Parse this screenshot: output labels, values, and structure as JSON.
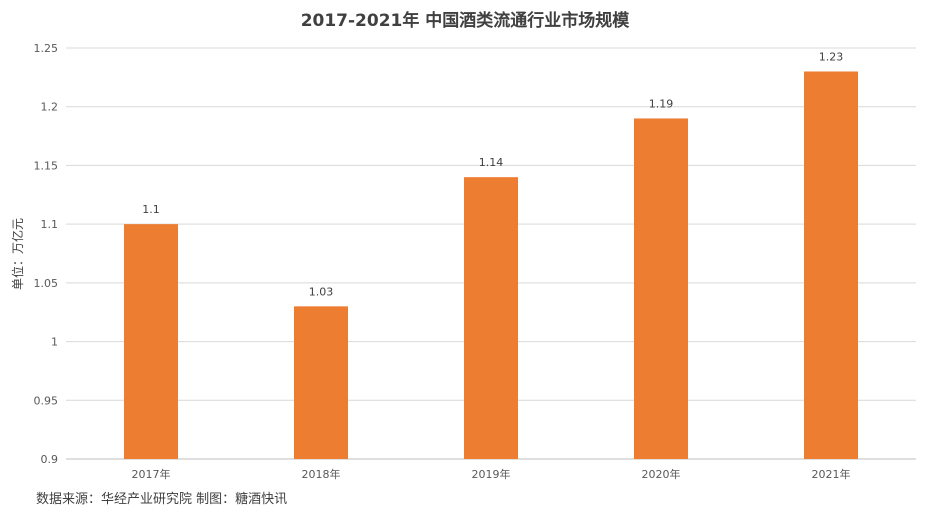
{
  "chart_data": {
    "type": "bar",
    "title": "2017-2021年 中国酒类流通行业市场规模",
    "ylabel": "单位：万亿元",
    "xlabel": "",
    "categories": [
      "2017年",
      "2018年",
      "2019年",
      "2020年",
      "2021年"
    ],
    "values": [
      1.1,
      1.03,
      1.14,
      1.19,
      1.23
    ],
    "data_labels": [
      "1.1",
      "1.03",
      "1.14",
      "1.19",
      "1.23"
    ],
    "ylim": [
      0.9,
      1.25
    ],
    "yticks": [
      0.9,
      0.95,
      1,
      1.05,
      1.1,
      1.15,
      1.2,
      1.25
    ],
    "ytick_labels": [
      "0.9",
      "0.95",
      "1",
      "1.05",
      "1.1",
      "1.15",
      "1.2",
      "1.25"
    ],
    "grid": true,
    "bar_color": "#ED7D31",
    "grid_color": "#D9D9D9"
  },
  "source_note": "数据来源：华经产业研究院  制图：糖酒快讯"
}
